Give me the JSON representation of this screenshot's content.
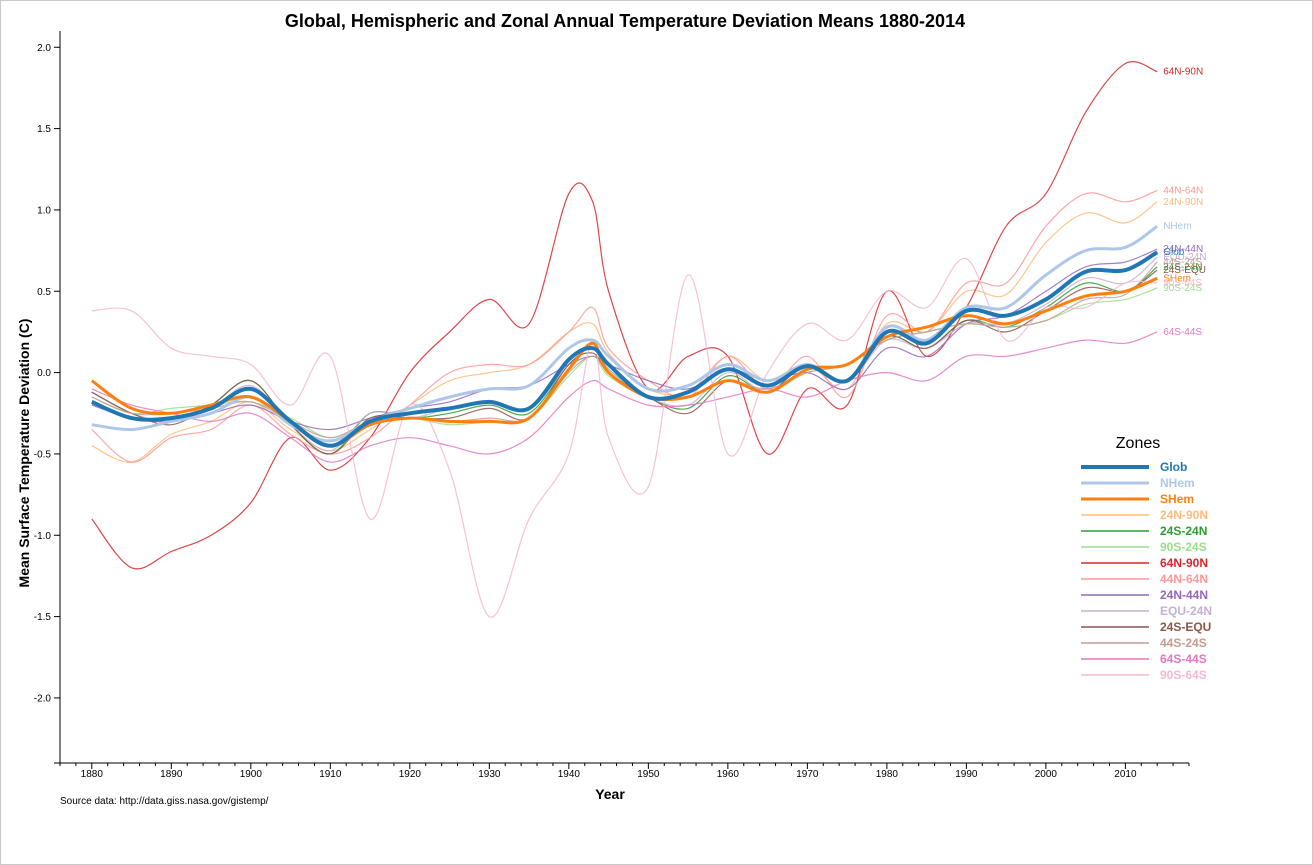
{
  "chart_data": {
    "type": "line",
    "title": "Global, Hemispheric and Zonal Annual Temperature Deviation Means 1880-2014",
    "xlabel": "Year",
    "ylabel": "Mean Surface Temperature Deviation (C)",
    "source_note": "Source data: http://data.giss.nasa.gov/gistemp/",
    "xlim": [
      1876,
      2018
    ],
    "ylim": [
      -2.4,
      2.1
    ],
    "x_ticks": [
      1880,
      1890,
      1900,
      1910,
      1920,
      1930,
      1940,
      1950,
      1960,
      1970,
      1980,
      1990,
      2000,
      2010
    ],
    "y_ticks": [
      "2.0",
      "1.5",
      "1.0",
      "0.5",
      "0.0",
      "-0.5",
      "-1.0",
      "-1.5",
      "-2.0"
    ],
    "legend_title": "Zones",
    "legend_position": "right",
    "x": [
      1880,
      1885,
      1890,
      1895,
      1900,
      1905,
      1910,
      1915,
      1920,
      1925,
      1930,
      1935,
      1940,
      1943,
      1945,
      1950,
      1955,
      1960,
      1965,
      1970,
      1975,
      1980,
      1985,
      1990,
      1995,
      2000,
      2005,
      2010,
      2014
    ],
    "series": [
      {
        "name": "Glob",
        "color": "#1f77b4",
        "width": 4,
        "values": [
          -0.18,
          -0.28,
          -0.28,
          -0.22,
          -0.1,
          -0.3,
          -0.45,
          -0.3,
          -0.25,
          -0.22,
          -0.18,
          -0.22,
          0.08,
          0.15,
          0.05,
          -0.15,
          -0.12,
          0.02,
          -0.08,
          0.04,
          -0.05,
          0.25,
          0.18,
          0.38,
          0.35,
          0.45,
          0.62,
          0.63,
          0.74
        ]
      },
      {
        "name": "NHem",
        "color": "#aec7e8",
        "width": 3,
        "values": [
          -0.32,
          -0.35,
          -0.3,
          -0.25,
          -0.15,
          -0.32,
          -0.42,
          -0.3,
          -0.22,
          -0.15,
          -0.1,
          -0.08,
          0.15,
          0.2,
          0.1,
          -0.1,
          -0.08,
          0.05,
          -0.05,
          0.05,
          -0.05,
          0.28,
          0.2,
          0.4,
          0.4,
          0.6,
          0.75,
          0.77,
          0.9
        ]
      },
      {
        "name": "SHem",
        "color": "#ff7f0e",
        "width": 3,
        "values": [
          -0.05,
          -0.22,
          -0.25,
          -0.2,
          -0.15,
          -0.3,
          -0.45,
          -0.32,
          -0.28,
          -0.3,
          -0.3,
          -0.28,
          0.02,
          0.18,
          0.0,
          -0.15,
          -0.15,
          -0.05,
          -0.12,
          0.02,
          0.05,
          0.22,
          0.28,
          0.35,
          0.3,
          0.38,
          0.47,
          0.5,
          0.58
        ]
      },
      {
        "name": "24N-90N",
        "color": "#ffbb78",
        "width": 1.2,
        "values": [
          -0.45,
          -0.55,
          -0.38,
          -0.3,
          -0.18,
          -0.35,
          -0.48,
          -0.35,
          -0.2,
          -0.05,
          0.0,
          0.05,
          0.25,
          0.3,
          0.12,
          -0.1,
          -0.12,
          0.1,
          -0.05,
          0.05,
          -0.1,
          0.3,
          0.25,
          0.5,
          0.48,
          0.8,
          0.98,
          0.92,
          1.05
        ]
      },
      {
        "name": "24S-24N",
        "color": "#2ca02c",
        "width": 1.2,
        "values": [
          -0.12,
          -0.25,
          -0.3,
          -0.2,
          -0.05,
          -0.32,
          -0.5,
          -0.25,
          -0.28,
          -0.25,
          -0.2,
          -0.25,
          0.05,
          0.15,
          0.02,
          -0.15,
          -0.22,
          -0.02,
          -0.12,
          0.05,
          -0.05,
          0.22,
          0.15,
          0.32,
          0.28,
          0.4,
          0.55,
          0.5,
          0.65
        ]
      },
      {
        "name": "90S-24S",
        "color": "#98df8a",
        "width": 1.2,
        "values": [
          -0.15,
          -0.25,
          -0.22,
          -0.2,
          -0.18,
          -0.28,
          -0.4,
          -0.3,
          -0.28,
          -0.32,
          -0.3,
          -0.28,
          -0.02,
          0.1,
          -0.02,
          -0.15,
          -0.15,
          -0.05,
          -0.12,
          0.0,
          0.05,
          0.2,
          0.25,
          0.3,
          0.28,
          0.32,
          0.42,
          0.45,
          0.52
        ]
      },
      {
        "name": "64N-90N",
        "color": "#d62728",
        "width": 1.2,
        "values": [
          -0.9,
          -1.2,
          -1.1,
          -1.0,
          -0.8,
          -0.4,
          -0.6,
          -0.4,
          0.0,
          0.25,
          0.45,
          0.3,
          1.1,
          1.05,
          0.5,
          -0.1,
          0.1,
          0.1,
          -0.5,
          -0.1,
          -0.2,
          0.5,
          0.1,
          0.4,
          0.9,
          1.1,
          1.6,
          1.9,
          1.85
        ]
      },
      {
        "name": "44N-64N",
        "color": "#ff9896",
        "width": 1.2,
        "values": [
          -0.35,
          -0.55,
          -0.4,
          -0.35,
          -0.2,
          -0.38,
          -0.5,
          -0.4,
          -0.2,
          0.0,
          0.05,
          0.05,
          0.25,
          0.4,
          0.15,
          -0.05,
          -0.15,
          0.1,
          -0.1,
          0.1,
          -0.15,
          0.35,
          0.25,
          0.55,
          0.55,
          0.9,
          1.1,
          1.05,
          1.12
        ]
      },
      {
        "name": "24N-44N",
        "color": "#9467bd",
        "width": 1.2,
        "values": [
          -0.2,
          -0.28,
          -0.3,
          -0.25,
          -0.2,
          -0.3,
          -0.35,
          -0.28,
          -0.22,
          -0.18,
          -0.1,
          -0.08,
          0.05,
          0.1,
          0.05,
          -0.05,
          -0.1,
          0.02,
          -0.05,
          0.0,
          -0.1,
          0.15,
          0.1,
          0.3,
          0.35,
          0.5,
          0.65,
          0.68,
          0.76
        ]
      },
      {
        "name": "EQU-24N",
        "color": "#c5b0d5",
        "width": 1.2,
        "values": [
          -0.12,
          -0.25,
          -0.3,
          -0.22,
          -0.08,
          -0.32,
          -0.48,
          -0.25,
          -0.28,
          -0.22,
          -0.18,
          -0.22,
          0.05,
          0.15,
          0.02,
          -0.15,
          -0.2,
          0.0,
          -0.12,
          0.05,
          -0.05,
          0.2,
          0.15,
          0.3,
          0.3,
          0.42,
          0.58,
          0.55,
          0.71
        ]
      },
      {
        "name": "24S-EQU",
        "color": "#8c564b",
        "width": 1.2,
        "values": [
          -0.12,
          -0.25,
          -0.32,
          -0.2,
          -0.05,
          -0.32,
          -0.5,
          -0.28,
          -0.28,
          -0.28,
          -0.22,
          -0.28,
          0.05,
          0.12,
          0.0,
          -0.15,
          -0.25,
          -0.05,
          -0.12,
          0.05,
          -0.05,
          0.22,
          0.15,
          0.32,
          0.25,
          0.38,
          0.52,
          0.5,
          0.63
        ]
      },
      {
        "name": "44S-24S",
        "color": "#c49c94",
        "width": 1.2,
        "values": [
          -0.15,
          -0.25,
          -0.25,
          -0.22,
          -0.18,
          -0.3,
          -0.4,
          -0.3,
          -0.28,
          -0.3,
          -0.28,
          -0.28,
          0.0,
          0.1,
          0.0,
          -0.15,
          -0.15,
          -0.05,
          -0.1,
          0.0,
          0.05,
          0.2,
          0.25,
          0.3,
          0.28,
          0.32,
          0.45,
          0.48,
          0.68
        ]
      },
      {
        "name": "64S-44S",
        "color": "#e377c2",
        "width": 1.2,
        "values": [
          -0.1,
          -0.2,
          -0.25,
          -0.3,
          -0.25,
          -0.4,
          -0.55,
          -0.45,
          -0.4,
          -0.45,
          -0.5,
          -0.4,
          -0.15,
          -0.05,
          -0.1,
          -0.2,
          -0.2,
          -0.15,
          -0.1,
          -0.15,
          -0.05,
          0.0,
          -0.05,
          0.1,
          0.1,
          0.15,
          0.2,
          0.18,
          0.25
        ]
      },
      {
        "name": "90S-64S",
        "color": "#f7b6d2",
        "width": 1.2,
        "values": [
          0.38,
          0.38,
          0.15,
          0.1,
          0.05,
          -0.2,
          0.1,
          -0.9,
          -0.2,
          -0.6,
          -1.5,
          -0.9,
          -0.5,
          0.2,
          -0.4,
          -0.7,
          0.6,
          -0.5,
          0.0,
          0.3,
          0.2,
          0.5,
          0.4,
          0.7,
          0.2,
          0.4,
          0.4,
          0.55,
          0.55
        ]
      }
    ]
  }
}
